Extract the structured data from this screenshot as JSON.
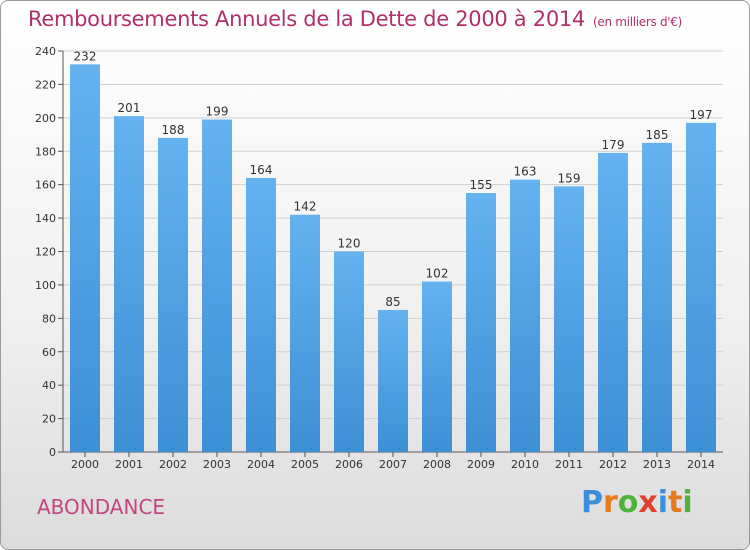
{
  "title": "Remboursements Annuels de la Dette de 2000 à 2014",
  "unit": "(en milliers d'€)",
  "city": "ABONDANCE",
  "logo": {
    "p": "P",
    "r": "r",
    "o": "o",
    "x": "x",
    "i1": "i",
    "t": "t",
    "i2": "i"
  },
  "colors": {
    "bar": "#3d8fd6",
    "bar_light": "#64b2ef",
    "title": "#b0306b",
    "grid": "#cfcfcf"
  },
  "chart_data": {
    "type": "bar",
    "categories": [
      "2000",
      "2001",
      "2002",
      "2003",
      "2004",
      "2005",
      "2006",
      "2007",
      "2008",
      "2009",
      "2010",
      "2011",
      "2012",
      "2013",
      "2014"
    ],
    "values": [
      232,
      201,
      188,
      199,
      164,
      142,
      120,
      85,
      102,
      155,
      163,
      159,
      179,
      185,
      197
    ],
    "ylim": [
      0,
      240
    ],
    "yticks": [
      0,
      20,
      40,
      60,
      80,
      100,
      120,
      140,
      160,
      180,
      200,
      220,
      240
    ],
    "grid": true
  }
}
